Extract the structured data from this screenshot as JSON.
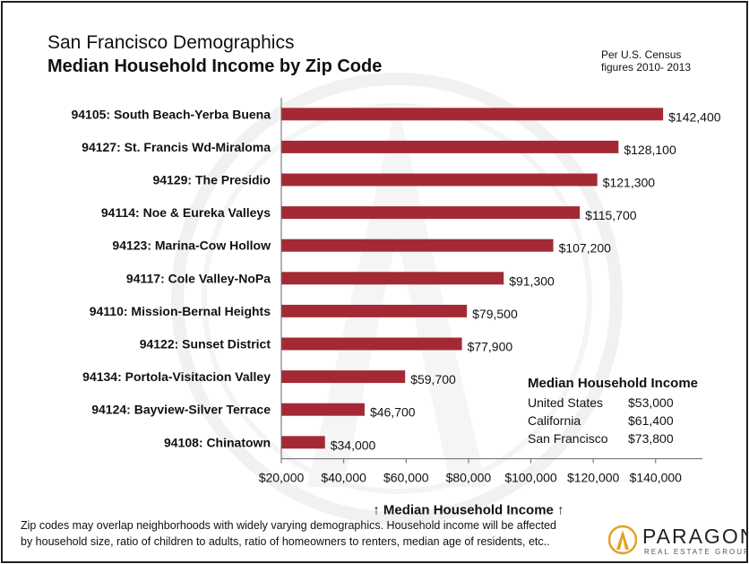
{
  "title_line1": "San Francisco Demographics",
  "title_line2": "Median Household Income by Zip Code",
  "note_line1": "Per U.S. Census",
  "note_line2": "figures 2010- 2013",
  "chart_data": {
    "type": "bar",
    "orientation": "horizontal",
    "categories": [
      "94105: South Beach-Yerba Buena",
      "94127: St. Francis Wd-Miraloma",
      "94129: The Presidio",
      "94114: Noe & Eureka Valleys",
      "94123: Marina-Cow Hollow",
      "94117: Cole Valley-NoPa",
      "94110: Mission-Bernal Heights",
      "94122: Sunset District",
      "94134: Portola-Visitacion Valley",
      "94124: Bayview-Silver Terrace",
      "94108: Chinatown"
    ],
    "values": [
      142400,
      128100,
      121300,
      115700,
      107200,
      91300,
      79500,
      77900,
      59700,
      46700,
      34000
    ],
    "value_labels": [
      "$142,400",
      "$128,100",
      "$121,300",
      "$115,700",
      "$107,200",
      "$91,300",
      "$79,500",
      "$77,900",
      "$59,700",
      "$46,700",
      "$34,000"
    ],
    "xlim": [
      20000,
      155000
    ],
    "xticks": [
      20000,
      40000,
      60000,
      80000,
      100000,
      120000,
      140000
    ],
    "xtick_labels": [
      "$20,000",
      "$40,000",
      "$60,000",
      "$80,000",
      "$100,000",
      "$120,000",
      "$140,000"
    ],
    "xlabel": "↑ Median Household Income ↑",
    "grid": false,
    "bar_color": "#a32a35"
  },
  "legend": {
    "title": "Median Household Income",
    "rows": [
      {
        "label": "United  States",
        "value": "$53,000"
      },
      {
        "label": "California",
        "value": "$61,400"
      },
      {
        "label": "San Francisco",
        "value": "$73,800"
      }
    ]
  },
  "footnote_line1": "Zip codes may overlap neighborhoods with widely varying demographics. Household income will be affected",
  "footnote_line2": "by household size, ratio of children to adults, ratio of homeowners to renters, median age of residents, etc..",
  "logo": {
    "word": "PARAGON",
    "sub": "REAL ESTATE GROUP",
    "accent": "#e2a227"
  }
}
